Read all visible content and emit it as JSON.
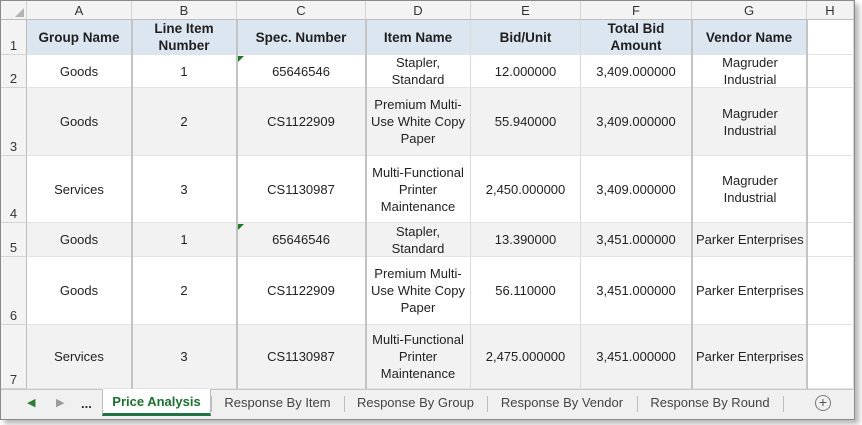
{
  "columns": [
    "A",
    "B",
    "C",
    "D",
    "E",
    "F",
    "G",
    "H"
  ],
  "row_numbers": [
    "1",
    "2",
    "3",
    "4",
    "5",
    "6",
    "7"
  ],
  "headers": [
    "Group Name",
    "Line Item Number",
    "Spec. Number",
    "Item Name",
    "Bid/Unit",
    "Total Bid Amount",
    "Vendor Name"
  ],
  "rows": [
    [
      "Goods",
      "1",
      "65646546",
      "Stapler, Standard",
      "12.000000",
      "3,409.000000",
      "Magruder Industrial"
    ],
    [
      "Goods",
      "2",
      "CS1122909",
      "Premium Multi-Use White Copy Paper",
      "55.940000",
      "3,409.000000",
      "Magruder Industrial"
    ],
    [
      "Services",
      "3",
      "CS1130987",
      "Multi-Functional Printer Maintenance",
      "2,450.000000",
      "3,409.000000",
      "Magruder Industrial"
    ],
    [
      "Goods",
      "1",
      "65646546",
      "Stapler, Standard",
      "13.390000",
      "3,451.000000",
      "Parker Enterprises"
    ],
    [
      "Goods",
      "2",
      "CS1122909",
      "Premium Multi-Use White Copy Paper",
      "56.110000",
      "3,451.000000",
      "Parker Enterprises"
    ],
    [
      "Services",
      "3",
      "CS1130987",
      "Multi-Functional Printer Maintenance",
      "2,475.000000",
      "3,451.000000",
      "Parker Enterprises"
    ]
  ],
  "sheet_tabs": {
    "ellipsis": "...",
    "tabs": [
      "Price Analysis",
      "Response By Item",
      "Response By Group",
      "Response By Vendor",
      "Response By Round"
    ],
    "active": "Price Analysis",
    "add_symbol": "+"
  },
  "icons": {
    "nav_left": "triangle-left",
    "nav_right": "triangle-right",
    "add_sheet": "plus-circle",
    "select_all": "select-all-triangle",
    "error_indicator": "green-corner-triangle"
  },
  "colors": {
    "header_fill": "#dce6f1",
    "band_fill": "#f2f2f2",
    "active_tab_text": "#1e6f30",
    "error_flag": "#1f7a1f"
  },
  "error_flag_rows": [
    0,
    3
  ]
}
